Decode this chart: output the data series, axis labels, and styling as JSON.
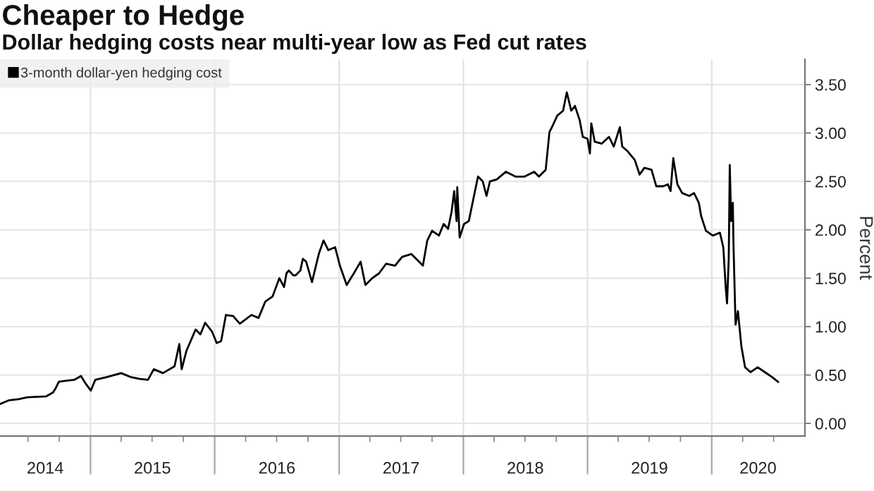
{
  "chart_data": {
    "type": "line",
    "title": "Cheaper to Hedge",
    "subtitle": "Dollar hedging costs near multi-year low as Fed cut rates",
    "ylabel": "Percent",
    "x": [
      "2014-04-10",
      "2014-05-07",
      "2014-06-03",
      "2014-06-30",
      "2014-08-24",
      "2014-09-13",
      "2014-09-20",
      "2014-09-30",
      "2014-10-18",
      "2014-11-14",
      "2014-12-04",
      "2014-12-18",
      "2015-01-02",
      "2015-01-15",
      "2015-02-19",
      "2015-04-01",
      "2015-04-28",
      "2015-05-26",
      "2015-06-19",
      "2015-07-06",
      "2015-08-02",
      "2015-09-05",
      "2015-09-19",
      "2015-09-26",
      "2015-10-10",
      "2015-11-06",
      "2015-11-20",
      "2015-12-04",
      "2015-12-24",
      "2016-01-07",
      "2016-01-20",
      "2016-02-03",
      "2016-02-24",
      "2016-03-15",
      "2016-04-18",
      "2016-05-09",
      "2016-05-29",
      "2016-06-19",
      "2016-07-09",
      "2016-07-23",
      "2016-07-30",
      "2016-08-06",
      "2016-08-19",
      "2016-08-26",
      "2016-09-09",
      "2016-09-16",
      "2016-09-26",
      "2016-10-13",
      "2016-11-02",
      "2016-11-16",
      "2016-11-30",
      "2016-12-20",
      "2017-01-03",
      "2017-01-23",
      "2017-02-13",
      "2017-03-05",
      "2017-03-19",
      "2017-04-08",
      "2017-04-28",
      "2017-05-19",
      "2017-06-14",
      "2017-07-05",
      "2017-08-01",
      "2017-09-04",
      "2017-09-17",
      "2017-10-01",
      "2017-10-21",
      "2017-11-04",
      "2017-11-17",
      "2017-11-27",
      "2017-12-05",
      "2017-12-12",
      "2017-12-14",
      "2017-12-21",
      "2018-01-03",
      "2018-01-17",
      "2018-01-31",
      "2018-02-13",
      "2018-02-27",
      "2018-03-10",
      "2018-03-20",
      "2018-04-09",
      "2018-05-06",
      "2018-06-03",
      "2018-06-30",
      "2018-07-28",
      "2018-08-11",
      "2018-08-31",
      "2018-09-11",
      "2018-09-21",
      "2018-10-04",
      "2018-10-21",
      "2018-11-01",
      "2018-11-14",
      "2018-11-25",
      "2018-12-09",
      "2018-12-18",
      "2019-01-01",
      "2019-01-08",
      "2019-01-12",
      "2019-01-22",
      "2019-02-12",
      "2019-03-05",
      "2019-03-19",
      "2019-04-06",
      "2019-04-13",
      "2019-04-29",
      "2019-05-20",
      "2019-06-03",
      "2019-06-17",
      "2019-07-08",
      "2019-07-22",
      "2019-08-12",
      "2019-08-25",
      "2019-09-02",
      "2019-09-10",
      "2019-09-22",
      "2019-10-06",
      "2019-10-27",
      "2019-11-10",
      "2019-11-24",
      "2019-12-01",
      "2019-12-15",
      "2020-01-04",
      "2020-01-25",
      "2020-02-04",
      "2020-02-11",
      "2020-02-15",
      "2020-02-20",
      "2020-02-23",
      "2020-02-27",
      "2020-03-03",
      "2020-03-05",
      "2020-03-11",
      "2020-03-18",
      "2020-03-28",
      "2020-04-08",
      "2020-04-24",
      "2020-05-15",
      "2020-06-05",
      "2020-06-26",
      "2020-07-14"
    ],
    "series": [
      {
        "name": "3-month dollar-yen hedging cost",
        "color": "#000000",
        "values": [
          0.2,
          0.24,
          0.25,
          0.27,
          0.28,
          0.32,
          0.36,
          0.43,
          0.44,
          0.45,
          0.49,
          0.41,
          0.34,
          0.45,
          0.48,
          0.52,
          0.48,
          0.46,
          0.45,
          0.56,
          0.52,
          0.59,
          0.82,
          0.56,
          0.75,
          0.97,
          0.92,
          1.04,
          0.95,
          0.83,
          0.85,
          1.12,
          1.11,
          1.03,
          1.12,
          1.09,
          1.26,
          1.31,
          1.5,
          1.41,
          1.55,
          1.58,
          1.53,
          1.53,
          1.58,
          1.7,
          1.67,
          1.46,
          1.75,
          1.89,
          1.79,
          1.82,
          1.63,
          1.43,
          1.55,
          1.67,
          1.43,
          1.5,
          1.55,
          1.65,
          1.63,
          1.72,
          1.75,
          1.63,
          1.89,
          1.99,
          1.94,
          2.06,
          2.01,
          2.18,
          2.4,
          2.09,
          2.44,
          1.92,
          2.06,
          2.09,
          2.33,
          2.55,
          2.5,
          2.35,
          2.5,
          2.52,
          2.6,
          2.55,
          2.55,
          2.6,
          2.55,
          2.62,
          3.01,
          3.08,
          3.18,
          3.23,
          3.42,
          3.23,
          3.28,
          3.13,
          2.96,
          2.94,
          2.79,
          3.1,
          2.91,
          2.89,
          2.96,
          2.86,
          3.06,
          2.86,
          2.81,
          2.72,
          2.57,
          2.64,
          2.62,
          2.45,
          2.45,
          2.47,
          2.4,
          2.74,
          2.47,
          2.38,
          2.35,
          2.38,
          2.28,
          2.14,
          1.99,
          1.94,
          1.97,
          1.82,
          1.41,
          1.24,
          1.7,
          2.67,
          2.09,
          2.28,
          1.84,
          1.02,
          1.16,
          0.8,
          0.58,
          0.53,
          0.58,
          0.53,
          0.48,
          0.43
        ]
      }
    ],
    "xlim": [
      "2014-04-10",
      "2020-10-01"
    ],
    "xticks": [
      {
        "value": "2014-07-01",
        "label": null
      },
      {
        "value": "2014-10-01",
        "label": null
      },
      {
        "value": "2015-01-01",
        "label": null
      },
      {
        "value": "2015-04-01",
        "label": null
      },
      {
        "value": "2015-07-01",
        "label": null
      },
      {
        "value": "2015-10-01",
        "label": null
      },
      {
        "value": "2016-01-01",
        "label": null
      },
      {
        "value": "2016-04-01",
        "label": null
      },
      {
        "value": "2016-07-01",
        "label": null
      },
      {
        "value": "2016-10-01",
        "label": null
      },
      {
        "value": "2017-01-01",
        "label": null
      },
      {
        "value": "2017-04-01",
        "label": null
      },
      {
        "value": "2017-07-01",
        "label": null
      },
      {
        "value": "2017-10-01",
        "label": null
      },
      {
        "value": "2018-01-01",
        "label": null
      },
      {
        "value": "2018-04-01",
        "label": null
      },
      {
        "value": "2018-07-01",
        "label": null
      },
      {
        "value": "2018-10-01",
        "label": null
      },
      {
        "value": "2019-01-01",
        "label": null
      },
      {
        "value": "2019-04-01",
        "label": null
      },
      {
        "value": "2019-07-01",
        "label": null
      },
      {
        "value": "2019-10-01",
        "label": null
      },
      {
        "value": "2020-01-01",
        "label": null
      },
      {
        "value": "2020-04-01",
        "label": null
      },
      {
        "value": "2020-07-01",
        "label": null
      },
      {
        "value": "2014-08-21",
        "label": "2014"
      },
      {
        "value": "2015-07-02",
        "label": "2015"
      },
      {
        "value": "2016-07-02",
        "label": "2016"
      },
      {
        "value": "2017-07-02",
        "label": "2017"
      },
      {
        "value": "2018-07-02",
        "label": "2018"
      },
      {
        "value": "2019-07-02",
        "label": "2019"
      },
      {
        "value": "2020-05-16",
        "label": "2020"
      }
    ],
    "ylim": [
      -0.13,
      3.76
    ],
    "yticks": [
      {
        "value": 0,
        "label": "0.00"
      },
      {
        "value": 0.5,
        "label": "0.50"
      },
      {
        "value": 1,
        "label": "1.00"
      },
      {
        "value": 1.5,
        "label": "1.50"
      },
      {
        "value": 2,
        "label": "2.00"
      },
      {
        "value": 2.5,
        "label": "2.50"
      },
      {
        "value": 3,
        "label": "3.00"
      },
      {
        "value": 3.5,
        "label": "3.50"
      }
    ],
    "grid": true,
    "legend": "top left"
  }
}
